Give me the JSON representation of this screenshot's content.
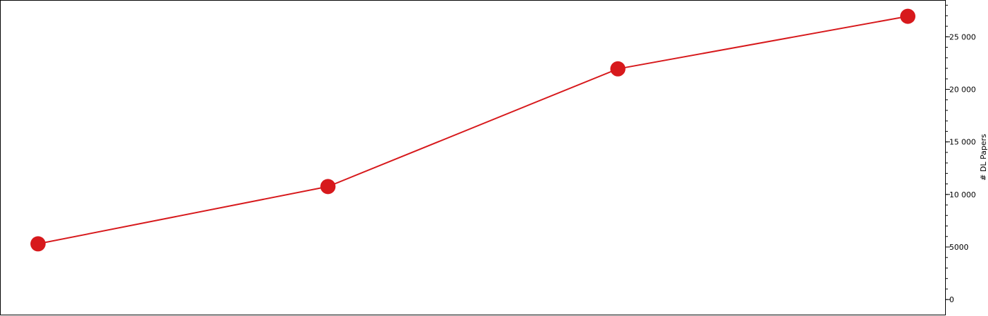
{
  "chart_data": {
    "type": "line",
    "x": [
      0,
      1,
      2,
      3
    ],
    "series": [
      {
        "values": [
          5300,
          10750,
          21950,
          26950
        ],
        "color": "#d7191c"
      }
    ],
    "ylabel": "# DL Papers",
    "y_axis_side": "right",
    "ylim": [
      -1500,
      28500
    ],
    "yticks": [
      0,
      5000,
      10000,
      15000,
      20000,
      25000
    ],
    "ytick_labels": [
      "0",
      "5000",
      "10 000",
      "15 000",
      "20 000",
      "25 000"
    ],
    "minor_tick_step": 1000,
    "grid": false,
    "x_tick_labels_visible": false
  }
}
